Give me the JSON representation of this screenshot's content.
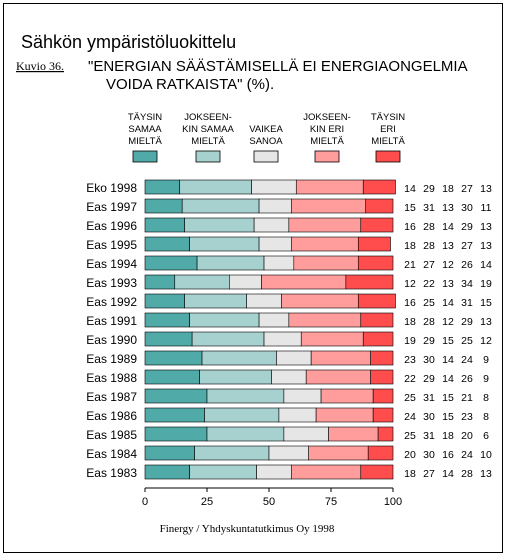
{
  "chart_data": {
    "type": "bar",
    "stacked": true,
    "orientation": "horizontal",
    "title": "Sähkön ympäristöluokittelu",
    "figure_label": "Kuvio 36.",
    "subtitle_lines": [
      "\"ENERGIAN SÄÄSTÄMISELLÄ EI ENERGIAONGELMIA",
      "VOIDA RATKAISTA\" (%)."
    ],
    "source": "Finergy / Yhdyskuntatutkimus Oy 1998",
    "xlim": [
      0,
      100
    ],
    "xticks": [
      "0",
      "25",
      "50",
      "75",
      "100"
    ],
    "categories": [
      "Eko 1998",
      "Eas 1997",
      "Eas 1996",
      "Eas 1995",
      "Eas 1994",
      "Eas 1993",
      "Eas 1992",
      "Eas 1991",
      "Eas 1990",
      "Eas 1989",
      "Eas 1988",
      "Eas 1987",
      "Eas 1986",
      "Eas 1985",
      "Eas 1984",
      "Eas 1983"
    ],
    "series": [
      {
        "name": "TÄYSIN SAMAA MIELTÄ",
        "legend_lines": [
          "TÄYSIN",
          "SAMAA",
          "MIELTÄ"
        ],
        "color": "#4FAAA8",
        "values": [
          14,
          15,
          16,
          18,
          21,
          12,
          16,
          18,
          19,
          23,
          22,
          25,
          24,
          25,
          20,
          18
        ]
      },
      {
        "name": "JOKSEENKIN SAMAA MIELTÄ",
        "legend_lines": [
          "JOKSEEN-",
          "KIN SAMAA",
          "MIELTÄ"
        ],
        "color": "#A6D1CF",
        "values": [
          29,
          31,
          28,
          28,
          27,
          22,
          25,
          28,
          29,
          30,
          29,
          31,
          30,
          31,
          30,
          27
        ]
      },
      {
        "name": "VAIKEA SANOA",
        "legend_lines": [
          "VAIKEA",
          "SANOA"
        ],
        "color": "#E6E6E6",
        "values": [
          18,
          13,
          14,
          13,
          12,
          13,
          14,
          12,
          15,
          14,
          14,
          15,
          15,
          18,
          16,
          14
        ]
      },
      {
        "name": "JOKSEENKIN ERI MIELTÄ",
        "legend_lines": [
          "JOKSEEN-",
          "KIN ERI",
          "MIELTÄ"
        ],
        "color": "#FF9C9C",
        "values": [
          27,
          30,
          29,
          27,
          26,
          34,
          31,
          29,
          25,
          24,
          26,
          21,
          23,
          20,
          24,
          28
        ]
      },
      {
        "name": "TÄYSIN ERI MIELTÄ",
        "legend_lines": [
          "TÄYSIN",
          "ERI",
          "MIELTÄ"
        ],
        "color": "#FF4D4D",
        "values": [
          13,
          11,
          13,
          13,
          14,
          19,
          15,
          13,
          12,
          9,
          9,
          8,
          8,
          6,
          10,
          13
        ]
      }
    ]
  }
}
